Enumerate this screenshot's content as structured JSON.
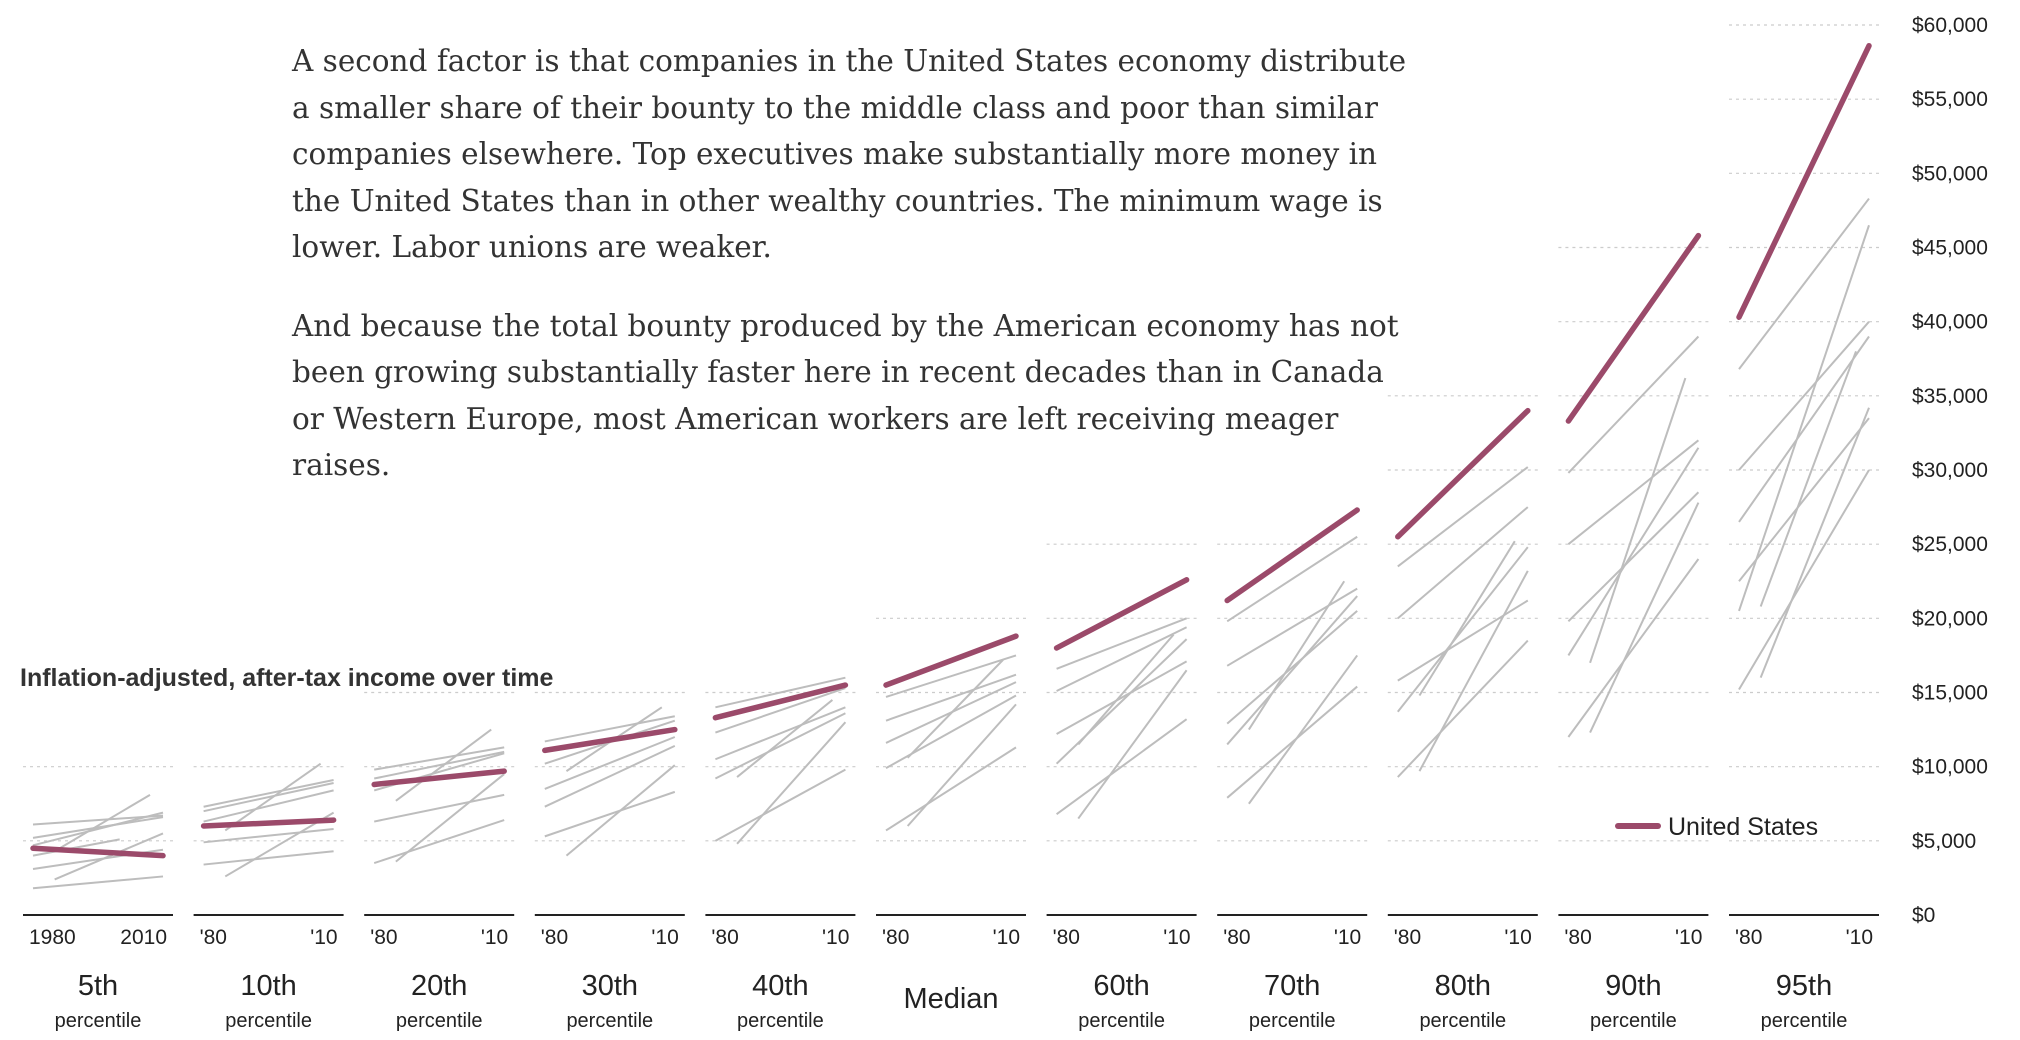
{
  "article": {
    "paragraphs": [
      "A second factor is that companies in the United States economy distribute a smaller share of their bounty to the middle class and poor than similar companies elsewhere. Top executives make substantially more money in the United States than in other wealthy countries. The minimum wage is lower. Labor unions are weaker.",
      "And because the total bounty produced by the American economy has not been growing substantially faster here in recent decades than in Canada or Western Europe, most American workers are left receiving meager raises."
    ]
  },
  "colors": {
    "us": "#9b4a6a",
    "other": "#bdbdbd",
    "grid": "#cccccc",
    "axis": "#222222"
  },
  "chart_data": {
    "type": "line",
    "title": "Inflation-adjusted, after-tax income over time",
    "ylim": [
      0,
      60000
    ],
    "yticks": [
      0,
      5000,
      10000,
      15000,
      20000,
      25000,
      30000,
      35000,
      40000,
      45000,
      50000,
      55000,
      60000
    ],
    "ytick_labels": [
      "$0",
      "$5,000",
      "$10,000",
      "$15,000",
      "$20,000",
      "$25,000",
      "$30,000",
      "$35,000",
      "$40,000",
      "$45,000",
      "$50,000",
      "$55,000",
      "$60,000"
    ],
    "x": [
      1980,
      2010
    ],
    "legend": {
      "label": "United States",
      "position": "bottom-right"
    },
    "panels": [
      {
        "label_big": "5th",
        "label_small": "percentile",
        "tick_start": "1980",
        "tick_end": "2010",
        "us": [
          {
            "x": 1980,
            "y": 4500
          },
          {
            "x": 2010,
            "y": 4000
          }
        ],
        "others": [
          [
            {
              "x": 1980,
              "y": 6100
            },
            {
              "x": 2010,
              "y": 6700
            }
          ],
          [
            {
              "x": 1980,
              "y": 5200
            },
            {
              "x": 2010,
              "y": 6600
            }
          ],
          [
            {
              "x": 1980,
              "y": 4700
            },
            {
              "x": 2010,
              "y": 6900
            }
          ],
          [
            {
              "x": 1985,
              "y": 4300
            },
            {
              "x": 2007,
              "y": 8100
            }
          ],
          [
            {
              "x": 1980,
              "y": 1800
            },
            {
              "x": 2010,
              "y": 2600
            }
          ],
          [
            {
              "x": 1985,
              "y": 2400
            },
            {
              "x": 2010,
              "y": 5500
            }
          ],
          [
            {
              "x": 1980,
              "y": 3100
            },
            {
              "x": 2010,
              "y": 4400
            }
          ],
          [
            {
              "x": 1980,
              "y": 4000
            },
            {
              "x": 2000,
              "y": 5100
            }
          ]
        ]
      },
      {
        "label_big": "10th",
        "label_small": "percentile",
        "tick_start": "'80",
        "tick_end": "'10",
        "us": [
          {
            "x": 1980,
            "y": 6000
          },
          {
            "x": 2010,
            "y": 6400
          }
        ],
        "others": [
          [
            {
              "x": 1980,
              "y": 7000
            },
            {
              "x": 2010,
              "y": 8900
            }
          ],
          [
            {
              "x": 1980,
              "y": 6300
            },
            {
              "x": 2010,
              "y": 8400
            }
          ],
          [
            {
              "x": 1985,
              "y": 5700
            },
            {
              "x": 2007,
              "y": 10200
            }
          ],
          [
            {
              "x": 1980,
              "y": 7300
            },
            {
              "x": 2010,
              "y": 9100
            }
          ],
          [
            {
              "x": 1980,
              "y": 3400
            },
            {
              "x": 2010,
              "y": 4300
            }
          ],
          [
            {
              "x": 1985,
              "y": 2600
            },
            {
              "x": 2010,
              "y": 6900
            }
          ],
          [
            {
              "x": 1980,
              "y": 4900
            },
            {
              "x": 2010,
              "y": 5800
            }
          ]
        ]
      },
      {
        "label_big": "20th",
        "label_small": "percentile",
        "tick_start": "'80",
        "tick_end": "'10",
        "us": [
          {
            "x": 1980,
            "y": 8800
          },
          {
            "x": 2010,
            "y": 9700
          }
        ],
        "others": [
          [
            {
              "x": 1980,
              "y": 9800
            },
            {
              "x": 2010,
              "y": 11300
            }
          ],
          [
            {
              "x": 1980,
              "y": 8400
            },
            {
              "x": 2010,
              "y": 10900
            }
          ],
          [
            {
              "x": 1985,
              "y": 7700
            },
            {
              "x": 2007,
              "y": 12500
            }
          ],
          [
            {
              "x": 1980,
              "y": 9200
            },
            {
              "x": 2010,
              "y": 11000
            }
          ],
          [
            {
              "x": 1980,
              "y": 3500
            },
            {
              "x": 2010,
              "y": 6400
            }
          ],
          [
            {
              "x": 1985,
              "y": 3600
            },
            {
              "x": 2010,
              "y": 9500
            }
          ],
          [
            {
              "x": 1980,
              "y": 6300
            },
            {
              "x": 2010,
              "y": 8100
            }
          ]
        ]
      },
      {
        "label_big": "30th",
        "label_small": "percentile",
        "tick_start": "'80",
        "tick_end": "'10",
        "us": [
          {
            "x": 1980,
            "y": 11100
          },
          {
            "x": 2010,
            "y": 12500
          }
        ],
        "others": [
          [
            {
              "x": 1980,
              "y": 11700
            },
            {
              "x": 2010,
              "y": 13400
            }
          ],
          [
            {
              "x": 1980,
              "y": 10200
            },
            {
              "x": 2010,
              "y": 13100
            }
          ],
          [
            {
              "x": 1985,
              "y": 9700
            },
            {
              "x": 2007,
              "y": 14000
            }
          ],
          [
            {
              "x": 1980,
              "y": 8500
            },
            {
              "x": 2010,
              "y": 12000
            }
          ],
          [
            {
              "x": 1980,
              "y": 5300
            },
            {
              "x": 2010,
              "y": 8300
            }
          ],
          [
            {
              "x": 1985,
              "y": 4000
            },
            {
              "x": 2010,
              "y": 10100
            }
          ],
          [
            {
              "x": 1980,
              "y": 7300
            },
            {
              "x": 2010,
              "y": 11400
            }
          ]
        ]
      },
      {
        "label_big": "40th",
        "label_small": "percentile",
        "tick_start": "'80",
        "tick_end": "'10",
        "us": [
          {
            "x": 1980,
            "y": 13300
          },
          {
            "x": 2010,
            "y": 15500
          }
        ],
        "others": [
          [
            {
              "x": 1980,
              "y": 14000
            },
            {
              "x": 2010,
              "y": 16000
            }
          ],
          [
            {
              "x": 1980,
              "y": 12300
            },
            {
              "x": 2010,
              "y": 15300
            }
          ],
          [
            {
              "x": 1985,
              "y": 9300
            },
            {
              "x": 2007,
              "y": 14500
            }
          ],
          [
            {
              "x": 1980,
              "y": 10500
            },
            {
              "x": 2010,
              "y": 14000
            }
          ],
          [
            {
              "x": 1980,
              "y": 5000
            },
            {
              "x": 2010,
              "y": 9800
            }
          ],
          [
            {
              "x": 1985,
              "y": 4800
            },
            {
              "x": 2010,
              "y": 13000
            }
          ],
          [
            {
              "x": 1980,
              "y": 9200
            },
            {
              "x": 2010,
              "y": 13600
            }
          ]
        ]
      },
      {
        "label_big": "Median",
        "label_small": "",
        "tick_start": "'80",
        "tick_end": "'10",
        "us": [
          {
            "x": 1980,
            "y": 15500
          },
          {
            "x": 2010,
            "y": 18800
          }
        ],
        "others": [
          [
            {
              "x": 1980,
              "y": 14700
            },
            {
              "x": 2010,
              "y": 17500
            }
          ],
          [
            {
              "x": 1980,
              "y": 13100
            },
            {
              "x": 2010,
              "y": 16200
            }
          ],
          [
            {
              "x": 1985,
              "y": 10600
            },
            {
              "x": 2007,
              "y": 17200
            }
          ],
          [
            {
              "x": 1980,
              "y": 11600
            },
            {
              "x": 2010,
              "y": 15700
            }
          ],
          [
            {
              "x": 1980,
              "y": 5700
            },
            {
              "x": 2010,
              "y": 11300
            }
          ],
          [
            {
              "x": 1985,
              "y": 6000
            },
            {
              "x": 2010,
              "y": 14200
            }
          ],
          [
            {
              "x": 1980,
              "y": 9900
            },
            {
              "x": 2010,
              "y": 14800
            }
          ]
        ]
      },
      {
        "label_big": "60th",
        "label_small": "percentile",
        "tick_start": "'80",
        "tick_end": "'10",
        "us": [
          {
            "x": 1980,
            "y": 18000
          },
          {
            "x": 2010,
            "y": 22600
          }
        ],
        "others": [
          [
            {
              "x": 1980,
              "y": 16600
            },
            {
              "x": 2010,
              "y": 20000
            }
          ],
          [
            {
              "x": 1980,
              "y": 15100
            },
            {
              "x": 2010,
              "y": 19400
            }
          ],
          [
            {
              "x": 1985,
              "y": 11500
            },
            {
              "x": 2007,
              "y": 18900
            }
          ],
          [
            {
              "x": 1980,
              "y": 10200
            },
            {
              "x": 2010,
              "y": 18600
            }
          ],
          [
            {
              "x": 1980,
              "y": 6800
            },
            {
              "x": 2010,
              "y": 13200
            }
          ],
          [
            {
              "x": 1985,
              "y": 6500
            },
            {
              "x": 2010,
              "y": 16500
            }
          ],
          [
            {
              "x": 1980,
              "y": 12200
            },
            {
              "x": 2010,
              "y": 17100
            }
          ]
        ]
      },
      {
        "label_big": "70th",
        "label_small": "percentile",
        "tick_start": "'80",
        "tick_end": "'10",
        "us": [
          {
            "x": 1980,
            "y": 21200
          },
          {
            "x": 2010,
            "y": 27300
          }
        ],
        "others": [
          [
            {
              "x": 1980,
              "y": 19800
            },
            {
              "x": 2010,
              "y": 25500
            }
          ],
          [
            {
              "x": 1980,
              "y": 16800
            },
            {
              "x": 2010,
              "y": 22000
            }
          ],
          [
            {
              "x": 1985,
              "y": 12500
            },
            {
              "x": 2007,
              "y": 22500
            }
          ],
          [
            {
              "x": 1980,
              "y": 11500
            },
            {
              "x": 2010,
              "y": 21500
            }
          ],
          [
            {
              "x": 1980,
              "y": 7900
            },
            {
              "x": 2010,
              "y": 15400
            }
          ],
          [
            {
              "x": 1985,
              "y": 7500
            },
            {
              "x": 2010,
              "y": 17500
            }
          ],
          [
            {
              "x": 1980,
              "y": 12900
            },
            {
              "x": 2010,
              "y": 20500
            }
          ]
        ]
      },
      {
        "label_big": "80th",
        "label_small": "percentile",
        "tick_start": "'80",
        "tick_end": "'10",
        "us": [
          {
            "x": 1980,
            "y": 25500
          },
          {
            "x": 2010,
            "y": 34000
          }
        ],
        "others": [
          [
            {
              "x": 1980,
              "y": 23500
            },
            {
              "x": 2010,
              "y": 30200
            }
          ],
          [
            {
              "x": 1980,
              "y": 20000
            },
            {
              "x": 2010,
              "y": 27500
            }
          ],
          [
            {
              "x": 1985,
              "y": 14800
            },
            {
              "x": 2007,
              "y": 25200
            }
          ],
          [
            {
              "x": 1980,
              "y": 13700
            },
            {
              "x": 2010,
              "y": 24800
            }
          ],
          [
            {
              "x": 1980,
              "y": 9300
            },
            {
              "x": 2010,
              "y": 18500
            }
          ],
          [
            {
              "x": 1985,
              "y": 9700
            },
            {
              "x": 2010,
              "y": 23200
            }
          ],
          [
            {
              "x": 1980,
              "y": 15800
            },
            {
              "x": 2010,
              "y": 21200
            }
          ]
        ]
      },
      {
        "label_big": "90th",
        "label_small": "percentile",
        "tick_start": "'80",
        "tick_end": "'10",
        "us": [
          {
            "x": 1980,
            "y": 33300
          },
          {
            "x": 2010,
            "y": 45800
          }
        ],
        "others": [
          [
            {
              "x": 1980,
              "y": 29800
            },
            {
              "x": 2010,
              "y": 39000
            }
          ],
          [
            {
              "x": 1980,
              "y": 25000
            },
            {
              "x": 2010,
              "y": 32000
            }
          ],
          [
            {
              "x": 1985,
              "y": 17000
            },
            {
              "x": 2007,
              "y": 36200
            }
          ],
          [
            {
              "x": 1980,
              "y": 17500
            },
            {
              "x": 2010,
              "y": 31500
            }
          ],
          [
            {
              "x": 1980,
              "y": 12000
            },
            {
              "x": 2010,
              "y": 24000
            }
          ],
          [
            {
              "x": 1985,
              "y": 12300
            },
            {
              "x": 2010,
              "y": 27800
            }
          ],
          [
            {
              "x": 1980,
              "y": 19800
            },
            {
              "x": 2010,
              "y": 28500
            }
          ]
        ]
      },
      {
        "label_big": "95th",
        "label_small": "percentile",
        "tick_start": "'80",
        "tick_end": "'10",
        "us": [
          {
            "x": 1980,
            "y": 40300
          },
          {
            "x": 2010,
            "y": 58600
          }
        ],
        "others": [
          [
            {
              "x": 1980,
              "y": 36800
            },
            {
              "x": 2010,
              "y": 48300
            }
          ],
          [
            {
              "x": 1980,
              "y": 30000
            },
            {
              "x": 2010,
              "y": 40000
            }
          ],
          [
            {
              "x": 1985,
              "y": 20800
            },
            {
              "x": 2007,
              "y": 38000
            }
          ],
          [
            {
              "x": 1980,
              "y": 20500
            },
            {
              "x": 2010,
              "y": 46500
            }
          ],
          [
            {
              "x": 1980,
              "y": 15200
            },
            {
              "x": 2010,
              "y": 30000
            }
          ],
          [
            {
              "x": 1985,
              "y": 16000
            },
            {
              "x": 2010,
              "y": 34200
            }
          ],
          [
            {
              "x": 1980,
              "y": 22500
            },
            {
              "x": 2010,
              "y": 33500
            }
          ],
          [
            {
              "x": 1980,
              "y": 26500
            },
            {
              "x": 2010,
              "y": 39000
            }
          ]
        ]
      }
    ]
  }
}
